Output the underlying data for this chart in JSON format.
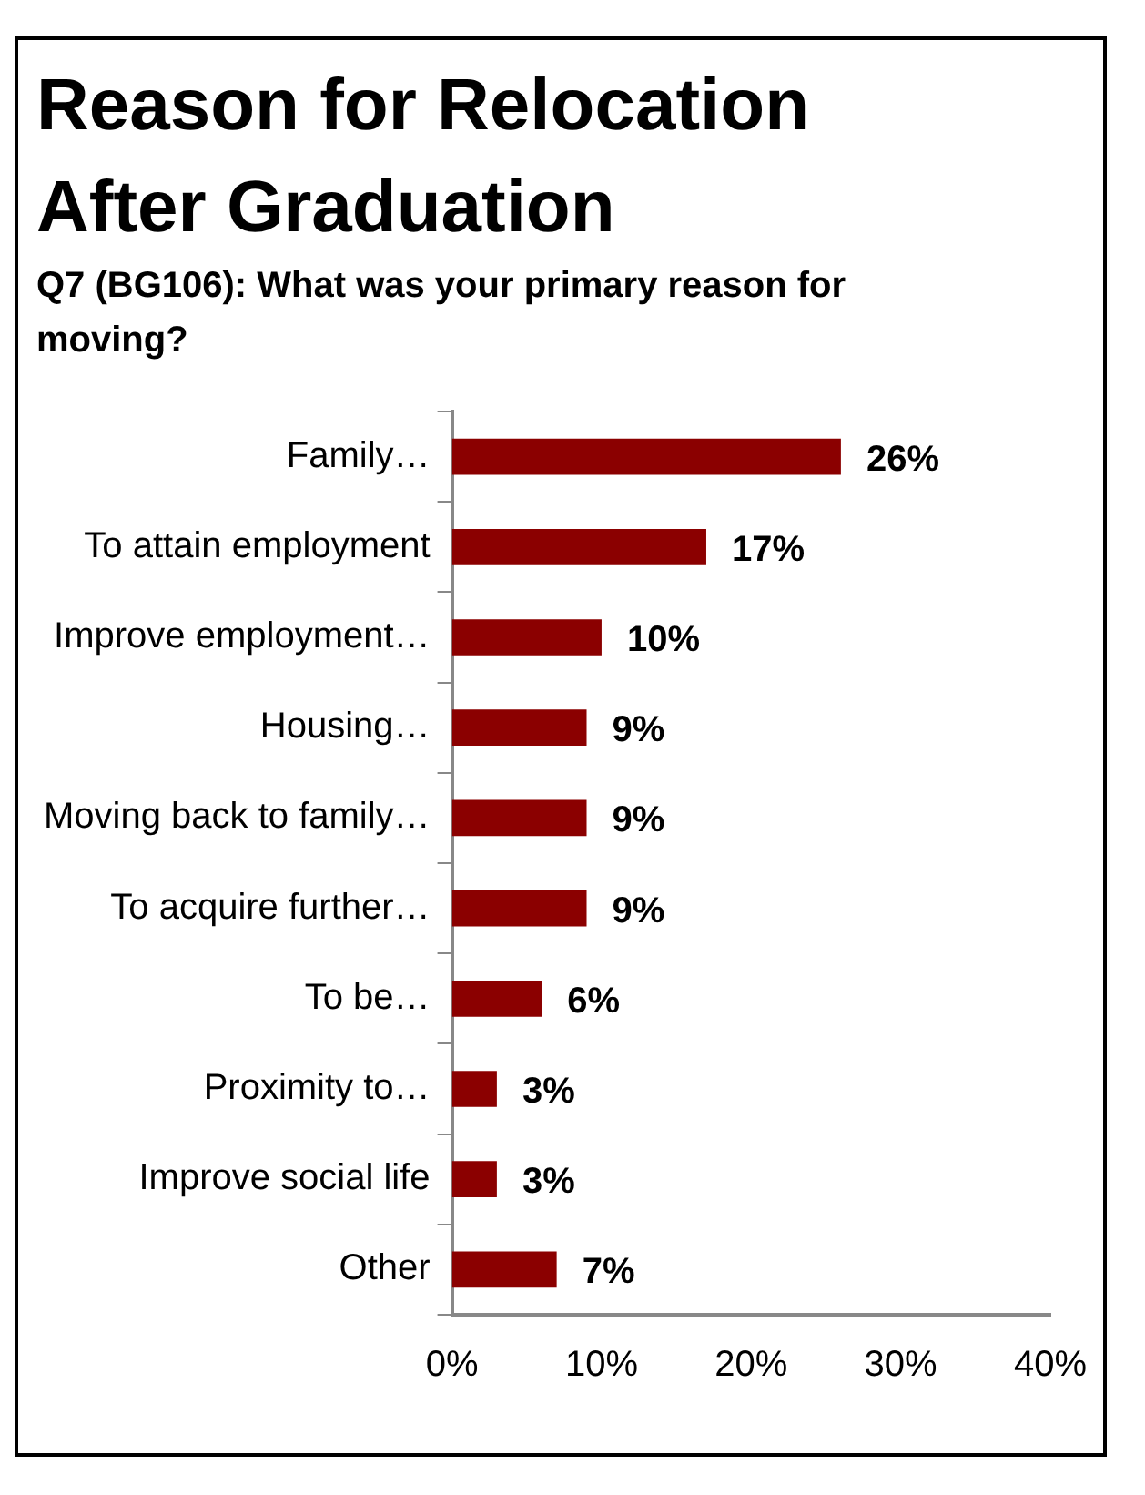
{
  "chart_data": {
    "type": "bar",
    "orientation": "horizontal",
    "title": "Reason for Relocation After Graduation",
    "subtitle": "Q7 (BG106): What was your primary reason for moving?",
    "categories": [
      "Family…",
      "To attain employment",
      "Improve employment…",
      "Housing…",
      "Moving back to family…",
      "To acquire further…",
      "To be…",
      "Proximity to…",
      "Improve social life",
      "Other"
    ],
    "values": [
      26,
      17,
      10,
      9,
      9,
      9,
      6,
      3,
      3,
      7
    ],
    "value_labels": [
      "26%",
      "17%",
      "10%",
      "9%",
      "9%",
      "9%",
      "6%",
      "3%",
      "3%",
      "7%"
    ],
    "color": "#8b0000",
    "xlim": [
      0,
      40
    ],
    "xticks": [
      {
        "value": 0,
        "label": "0%"
      },
      {
        "value": 10,
        "label": "10%"
      },
      {
        "value": 20,
        "label": "20%"
      },
      {
        "value": 30,
        "label": "30%"
      },
      {
        "value": 40,
        "label": "40%"
      }
    ],
    "grid": false,
    "legend": false
  }
}
